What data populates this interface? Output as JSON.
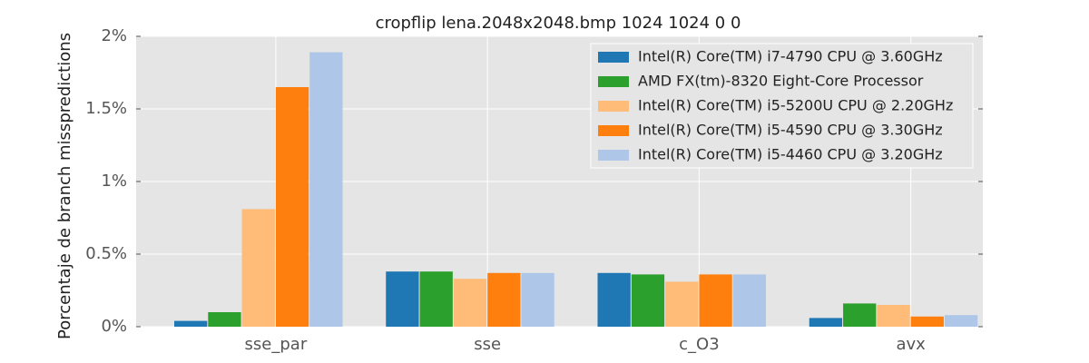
{
  "chart_data": {
    "type": "bar",
    "title": "cropflip lena.2048x2048.bmp 1024 1024 0 0",
    "y_label": "Porcentaje de branch misspredictions",
    "categories": [
      "sse_par",
      "sse",
      "c_O3",
      "avx"
    ],
    "series": [
      {
        "name": "Intel(R) Core(TM) i7-4790 CPU @ 3.60GHz",
        "color": "#1f77b4",
        "values": [
          0.04,
          0.38,
          0.37,
          0.06
        ]
      },
      {
        "name": "AMD FX(tm)-8320 Eight-Core Processor",
        "color": "#2ca02c",
        "values": [
          0.1,
          0.38,
          0.36,
          0.16
        ]
      },
      {
        "name": "Intel(R) Core(TM) i5-5200U CPU @ 2.20GHz",
        "color": "#ffbb78",
        "values": [
          0.81,
          0.33,
          0.31,
          0.15
        ]
      },
      {
        "name": "Intel(R) Core(TM) i5-4590 CPU @ 3.30GHz",
        "color": "#ff7f0e",
        "values": [
          1.65,
          0.37,
          0.36,
          0.07
        ]
      },
      {
        "name": "Intel(R) Core(TM) i5-4460  CPU @ 3.20GHz",
        "color": "#aec7e8",
        "values": [
          1.89,
          0.37,
          0.36,
          0.08
        ]
      }
    ],
    "ylim": [
      0,
      2
    ],
    "yticks": [
      {
        "value": 0,
        "label": "0%"
      },
      {
        "value": 0.5,
        "label": "0.5%"
      },
      {
        "value": 1,
        "label": "1%"
      },
      {
        "value": 1.5,
        "label": "1.5%"
      },
      {
        "value": 2,
        "label": "2%"
      }
    ],
    "grid": true,
    "legend": "upper right"
  }
}
